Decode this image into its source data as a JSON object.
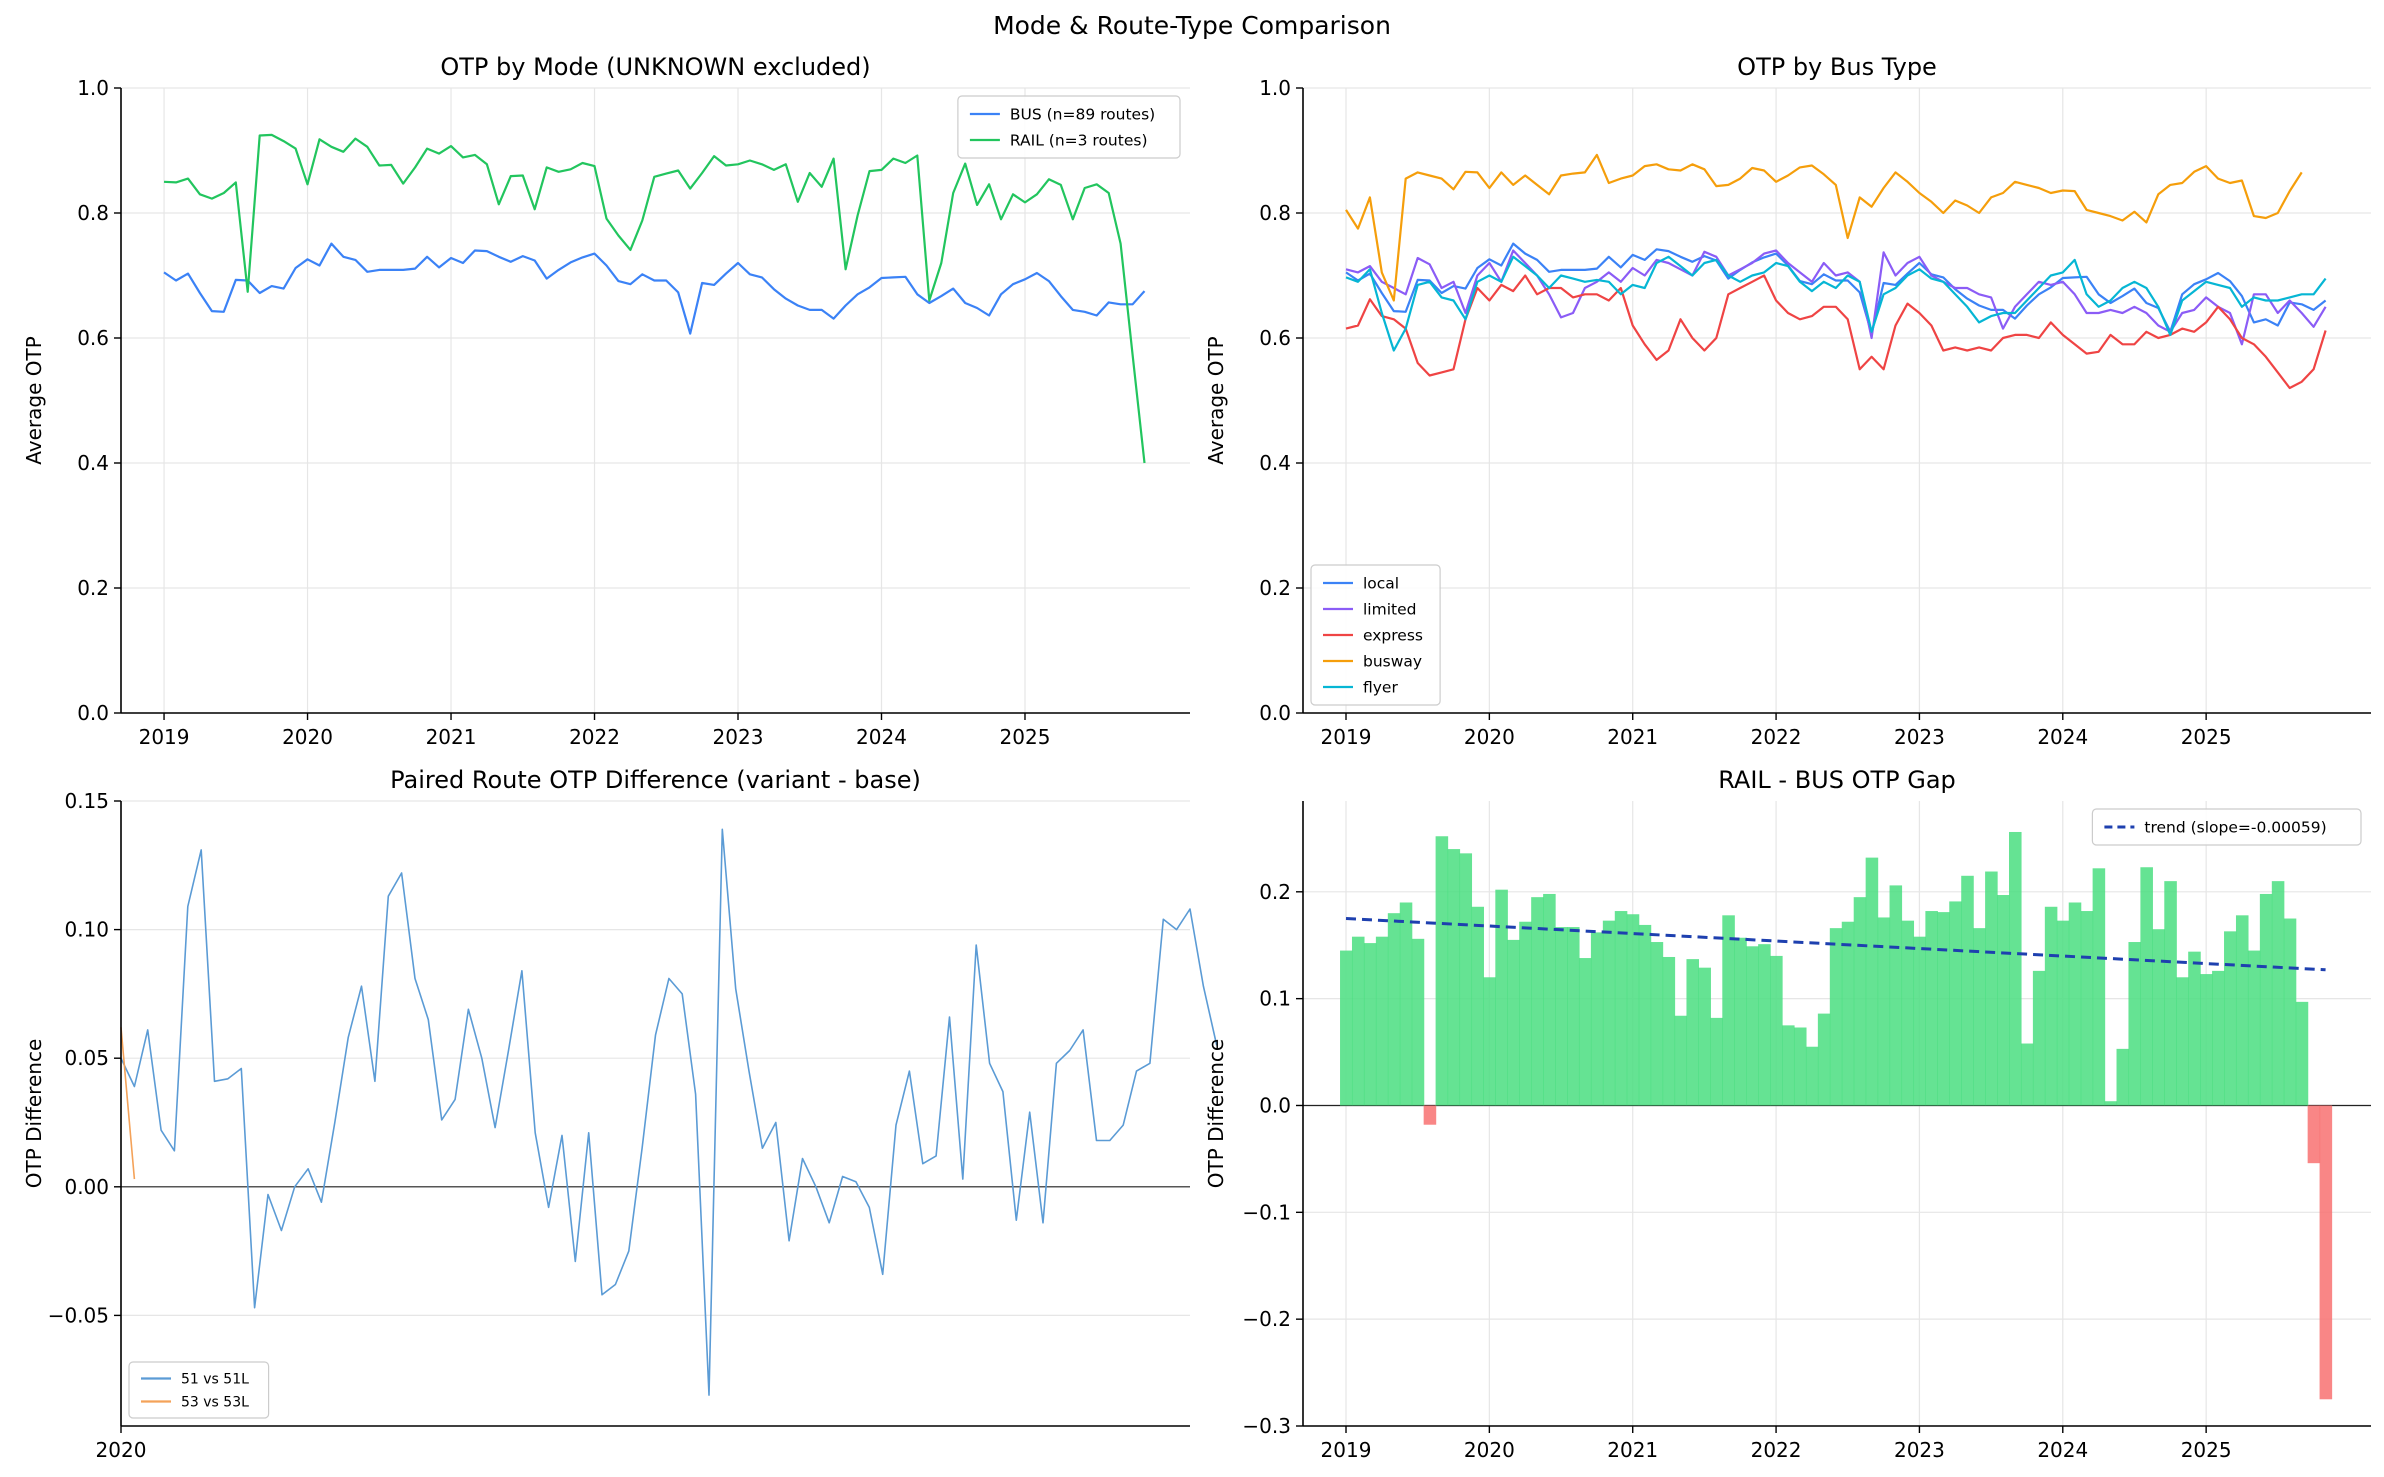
{
  "title": "Mode & Route-Type Comparison",
  "colors": {
    "bus": "#3b82f6",
    "rail": "#22c55e",
    "local": "#3b82f6",
    "limited": "#8b5cf6",
    "express": "#ef4444",
    "busway": "#f59e0b",
    "flyer": "#06b6d4",
    "pair1": "#5b9bd5",
    "pair2": "#f4a259",
    "gap_pos": "#4ade80",
    "gap_neg": "#f87171",
    "trend": "#1e40af"
  },
  "chart_data": [
    {
      "type": "line",
      "title": "OTP by Mode (UNKNOWN excluded)",
      "xlabel": "",
      "ylabel": "Average OTP",
      "ylim": [
        0,
        1.0
      ],
      "yticks": [
        0.0,
        0.2,
        0.4,
        0.6,
        0.8,
        1.0
      ],
      "ytick_labels": [
        "0.0",
        "0.2",
        "0.4",
        "0.6",
        "0.8",
        "1.0"
      ],
      "xlim": [
        2018.7,
        2026.15
      ],
      "xticks": [
        2019,
        2020,
        2021,
        2022,
        2023,
        2024,
        2025
      ],
      "xtick_labels": [
        "2019",
        "2020",
        "2021",
        "2022",
        "2023",
        "2024",
        "2025"
      ],
      "legend_position": "top-right",
      "x_start": 2019.0,
      "x_step": 0.08333,
      "series": [
        {
          "name": "BUS (n=89 routes)",
          "color_key": "bus",
          "values": [
            0.705,
            0.692,
            0.703,
            0.672,
            0.643,
            0.642,
            0.693,
            0.692,
            0.672,
            0.683,
            0.679,
            0.712,
            0.726,
            0.716,
            0.751,
            0.73,
            0.725,
            0.706,
            0.709,
            0.709,
            0.709,
            0.711,
            0.73,
            0.713,
            0.728,
            0.72,
            0.74,
            0.739,
            0.73,
            0.722,
            0.731,
            0.724,
            0.695,
            0.709,
            0.721,
            0.729,
            0.735,
            0.716,
            0.691,
            0.686,
            0.702,
            0.692,
            0.692,
            0.673,
            0.607,
            0.688,
            0.685,
            0.703,
            0.72,
            0.702,
            0.697,
            0.678,
            0.663,
            0.652,
            0.645,
            0.645,
            0.631,
            0.652,
            0.67,
            0.681,
            0.696,
            0.697,
            0.698,
            0.67,
            0.656,
            0.667,
            0.679,
            0.656,
            0.648,
            0.636,
            0.67,
            0.686,
            0.694,
            0.704,
            0.691,
            0.667,
            0.645,
            0.642,
            0.636,
            0.657,
            0.654,
            0.654,
            0.675
          ]
        },
        {
          "name": "RAIL (n=3 routes)",
          "color_key": "rail",
          "values": [
            0.85,
            0.849,
            0.855,
            0.83,
            0.823,
            0.832,
            0.849,
            0.674,
            0.924,
            0.925,
            0.915,
            0.903,
            0.846,
            0.918,
            0.906,
            0.898,
            0.919,
            0.906,
            0.876,
            0.877,
            0.847,
            0.873,
            0.903,
            0.895,
            0.907,
            0.889,
            0.893,
            0.878,
            0.814,
            0.859,
            0.86,
            0.806,
            0.873,
            0.866,
            0.87,
            0.88,
            0.875,
            0.791,
            0.764,
            0.741,
            0.788,
            0.858,
            0.863,
            0.868,
            0.839,
            0.864,
            0.891,
            0.876,
            0.878,
            0.884,
            0.878,
            0.869,
            0.878,
            0.818,
            0.864,
            0.842,
            0.887,
            0.71,
            0.796,
            0.867,
            0.869,
            0.887,
            0.88,
            0.892,
            0.66,
            0.72,
            0.832,
            0.879,
            0.813,
            0.846,
            0.79,
            0.83,
            0.817,
            0.83,
            0.854,
            0.845,
            0.79,
            0.84,
            0.846,
            0.832,
            0.751,
            0.573,
            0.4
          ]
        }
      ]
    },
    {
      "type": "line",
      "title": "OTP by Bus Type",
      "xlabel": "",
      "ylabel": "Average OTP",
      "ylim": [
        0,
        1.0
      ],
      "yticks": [
        0.0,
        0.2,
        0.4,
        0.6,
        0.8,
        1.0
      ],
      "ytick_labels": [
        "0.0",
        "0.2",
        "0.4",
        "0.6",
        "0.8",
        "1.0"
      ],
      "xlim": [
        2018.7,
        2026.15
      ],
      "xticks": [
        2019,
        2020,
        2021,
        2022,
        2023,
        2024,
        2025
      ],
      "xtick_labels": [
        "2019",
        "2020",
        "2021",
        "2022",
        "2023",
        "2024",
        "2025"
      ],
      "legend_position": "lower-left",
      "x_start": 2019.0,
      "x_step": 0.08333,
      "series": [
        {
          "name": "local",
          "color_key": "local",
          "values": [
            0.705,
            0.692,
            0.703,
            0.672,
            0.643,
            0.642,
            0.693,
            0.692,
            0.672,
            0.683,
            0.679,
            0.712,
            0.726,
            0.716,
            0.751,
            0.735,
            0.725,
            0.706,
            0.709,
            0.709,
            0.709,
            0.711,
            0.73,
            0.713,
            0.733,
            0.725,
            0.742,
            0.739,
            0.73,
            0.722,
            0.731,
            0.724,
            0.695,
            0.709,
            0.721,
            0.729,
            0.735,
            0.716,
            0.691,
            0.686,
            0.702,
            0.692,
            0.692,
            0.673,
            0.607,
            0.688,
            0.685,
            0.703,
            0.72,
            0.702,
            0.697,
            0.678,
            0.663,
            0.652,
            0.645,
            0.645,
            0.631,
            0.652,
            0.67,
            0.681,
            0.696,
            0.697,
            0.698,
            0.67,
            0.656,
            0.667,
            0.679,
            0.656,
            0.648,
            0.61,
            0.67,
            0.686,
            0.694,
            0.704,
            0.691,
            0.667,
            0.625,
            0.63,
            0.62,
            0.657,
            0.654,
            0.645,
            0.66
          ]
        },
        {
          "name": "limited",
          "color_key": "limited",
          "values": [
            0.71,
            0.705,
            0.715,
            0.69,
            0.68,
            0.67,
            0.728,
            0.718,
            0.68,
            0.69,
            0.64,
            0.7,
            0.72,
            0.69,
            0.74,
            0.72,
            0.7,
            0.67,
            0.633,
            0.64,
            0.68,
            0.69,
            0.705,
            0.69,
            0.712,
            0.7,
            0.725,
            0.72,
            0.71,
            0.7,
            0.738,
            0.73,
            0.7,
            0.71,
            0.72,
            0.735,
            0.74,
            0.72,
            0.705,
            0.69,
            0.72,
            0.7,
            0.705,
            0.69,
            0.6,
            0.737,
            0.7,
            0.72,
            0.73,
            0.7,
            0.69,
            0.68,
            0.68,
            0.67,
            0.665,
            0.615,
            0.65,
            0.67,
            0.69,
            0.685,
            0.69,
            0.67,
            0.64,
            0.64,
            0.645,
            0.64,
            0.65,
            0.64,
            0.62,
            0.61,
            0.64,
            0.645,
            0.665,
            0.65,
            0.64,
            0.59,
            0.67,
            0.67,
            0.64,
            0.66,
            0.64,
            0.618,
            0.65
          ]
        },
        {
          "name": "express",
          "color_key": "express",
          "values": [
            0.615,
            0.62,
            0.662,
            0.635,
            0.63,
            0.615,
            0.56,
            0.54,
            0.545,
            0.55,
            0.63,
            0.68,
            0.66,
            0.685,
            0.675,
            0.7,
            0.67,
            0.68,
            0.68,
            0.665,
            0.67,
            0.67,
            0.66,
            0.68,
            0.62,
            0.59,
            0.565,
            0.58,
            0.63,
            0.6,
            0.58,
            0.6,
            0.67,
            0.68,
            0.69,
            0.7,
            0.66,
            0.64,
            0.63,
            0.635,
            0.65,
            0.65,
            0.63,
            0.55,
            0.57,
            0.55,
            0.62,
            0.655,
            0.64,
            0.62,
            0.58,
            0.585,
            0.58,
            0.585,
            0.58,
            0.6,
            0.605,
            0.605,
            0.6,
            0.625,
            0.605,
            0.59,
            0.575,
            0.578,
            0.605,
            0.59,
            0.59,
            0.61,
            0.6,
            0.605,
            0.615,
            0.61,
            0.625,
            0.65,
            0.63,
            0.6,
            0.59,
            0.57,
            0.545,
            0.52,
            0.53,
            0.55,
            0.612
          ]
        },
        {
          "name": "busway",
          "color_key": "busway",
          "values": [
            0.805,
            0.775,
            0.825,
            0.705,
            0.66,
            0.855,
            0.865,
            0.86,
            0.855,
            0.838,
            0.866,
            0.865,
            0.84,
            0.865,
            0.845,
            0.86,
            0.845,
            0.83,
            0.86,
            0.863,
            0.865,
            0.893,
            0.848,
            0.855,
            0.86,
            0.875,
            0.878,
            0.87,
            0.868,
            0.878,
            0.87,
            0.843,
            0.845,
            0.855,
            0.872,
            0.868,
            0.85,
            0.86,
            0.873,
            0.876,
            0.862,
            0.845,
            0.76,
            0.825,
            0.81,
            0.84,
            0.865,
            0.85,
            0.832,
            0.818,
            0.8,
            0.82,
            0.812,
            0.8,
            0.825,
            0.832,
            0.85,
            0.845,
            0.84,
            0.832,
            0.836,
            0.835,
            0.805,
            0.8,
            0.795,
            0.788,
            0.802,
            0.785,
            0.83,
            0.845,
            0.848,
            0.866,
            0.875,
            0.855,
            0.848,
            0.852,
            0.795,
            0.792,
            0.8,
            0.835,
            0.865
          ]
        },
        {
          "name": "flyer",
          "color_key": "flyer",
          "values": [
            0.697,
            0.69,
            0.71,
            0.64,
            0.58,
            0.615,
            0.685,
            0.69,
            0.665,
            0.66,
            0.63,
            0.69,
            0.7,
            0.69,
            0.73,
            0.715,
            0.7,
            0.68,
            0.7,
            0.695,
            0.69,
            0.693,
            0.69,
            0.67,
            0.685,
            0.68,
            0.72,
            0.73,
            0.715,
            0.7,
            0.72,
            0.725,
            0.7,
            0.69,
            0.7,
            0.705,
            0.72,
            0.715,
            0.69,
            0.675,
            0.69,
            0.68,
            0.7,
            0.69,
            0.61,
            0.67,
            0.68,
            0.7,
            0.71,
            0.695,
            0.69,
            0.67,
            0.65,
            0.625,
            0.635,
            0.64,
            0.64,
            0.66,
            0.68,
            0.7,
            0.705,
            0.725,
            0.67,
            0.65,
            0.66,
            0.68,
            0.69,
            0.68,
            0.65,
            0.605,
            0.66,
            0.675,
            0.69,
            0.685,
            0.68,
            0.65,
            0.665,
            0.66,
            0.66,
            0.665,
            0.67,
            0.67,
            0.695
          ]
        }
      ]
    },
    {
      "type": "line",
      "title": "Paired Route OTP Difference (variant - base)",
      "xlabel": "",
      "ylabel": "OTP Difference",
      "ylim": [
        -0.093,
        0.15
      ],
      "yticks": [
        -0.05,
        0.0,
        0.05,
        0.1,
        0.15
      ],
      "ytick_labels": [
        "−0.05",
        "0.00",
        "0.05",
        "0.10",
        "0.15"
      ],
      "xlim": [
        0,
        80
      ],
      "xticks": [
        0
      ],
      "xtick_labels": [
        "2020"
      ],
      "zero_line": true,
      "legend_position": "lower-left",
      "x_start": 0,
      "x_step": 1,
      "series": [
        {
          "name": "51 vs 51L",
          "color_key": "pair1",
          "values": [
            0.05,
            0.039,
            0.061,
            0.022,
            0.014,
            0.109,
            0.131,
            0.041,
            0.042,
            0.046,
            -0.047,
            -0.003,
            -0.017,
            0.0,
            0.007,
            -0.006,
            0.025,
            0.058,
            0.078,
            0.041,
            0.113,
            0.122,
            0.081,
            0.065,
            0.026,
            0.034,
            0.069,
            0.05,
            0.023,
            0.053,
            0.084,
            0.021,
            -0.008,
            0.02,
            -0.029,
            0.021,
            -0.042,
            -0.038,
            -0.025,
            0.015,
            0.059,
            0.081,
            0.075,
            0.036,
            -0.081,
            0.139,
            0.077,
            0.045,
            0.015,
            0.025,
            -0.021,
            0.011,
            0.0,
            -0.014,
            0.004,
            0.002,
            -0.008,
            -0.034,
            0.024,
            0.045,
            0.009,
            0.012,
            0.066,
            0.003,
            0.094,
            0.048,
            0.037,
            -0.013,
            0.029,
            -0.014,
            0.048,
            0.053,
            0.061,
            0.018,
            0.018,
            0.024,
            0.045,
            0.048,
            0.104,
            0.1,
            0.108,
            0.078,
            0.055
          ]
        },
        {
          "name": "53 vs 53L",
          "color_key": "pair2",
          "values": [
            0.062,
            0.003
          ]
        }
      ]
    },
    {
      "type": "bar",
      "title": "RAIL - BUS OTP Gap",
      "xlabel": "",
      "ylabel": "OTP Difference",
      "ylim": [
        -0.3,
        0.285
      ],
      "yticks": [
        -0.3,
        -0.2,
        -0.1,
        0.0,
        0.1,
        0.2
      ],
      "ytick_labels": [
        "−0.3",
        "−0.2",
        "−0.1",
        "0.0",
        "0.1",
        "0.2"
      ],
      "xlim": [
        2018.7,
        2026.15
      ],
      "xticks": [
        2019,
        2020,
        2021,
        2022,
        2023,
        2024,
        2025
      ],
      "xtick_labels": [
        "2019",
        "2020",
        "2021",
        "2022",
        "2023",
        "2024",
        "2025"
      ],
      "zero_line": true,
      "legend_position": "top-right",
      "x_start": 2019.0,
      "x_step": 0.08333,
      "values": [
        0.145,
        0.158,
        0.152,
        0.158,
        0.18,
        0.19,
        0.156,
        -0.018,
        0.252,
        0.24,
        0.236,
        0.186,
        0.12,
        0.202,
        0.155,
        0.172,
        0.195,
        0.198,
        0.167,
        0.167,
        0.138,
        0.162,
        0.173,
        0.182,
        0.179,
        0.169,
        0.153,
        0.139,
        0.084,
        0.137,
        0.129,
        0.082,
        0.178,
        0.157,
        0.149,
        0.151,
        0.14,
        0.075,
        0.073,
        0.055,
        0.086,
        0.166,
        0.172,
        0.195,
        0.232,
        0.176,
        0.206,
        0.173,
        0.158,
        0.182,
        0.181,
        0.191,
        0.215,
        0.166,
        0.219,
        0.197,
        0.256,
        0.058,
        0.126,
        0.186,
        0.173,
        0.19,
        0.182,
        0.222,
        0.004,
        0.053,
        0.153,
        0.223,
        0.165,
        0.21,
        0.12,
        0.144,
        0.123,
        0.126,
        0.163,
        0.178,
        0.145,
        0.198,
        0.21,
        0.175,
        0.097,
        -0.054,
        -0.275
      ],
      "trend": {
        "name": "trend (slope=-0.00059)",
        "color_key": "trend",
        "start": 0.175,
        "end": 0.127
      }
    }
  ]
}
